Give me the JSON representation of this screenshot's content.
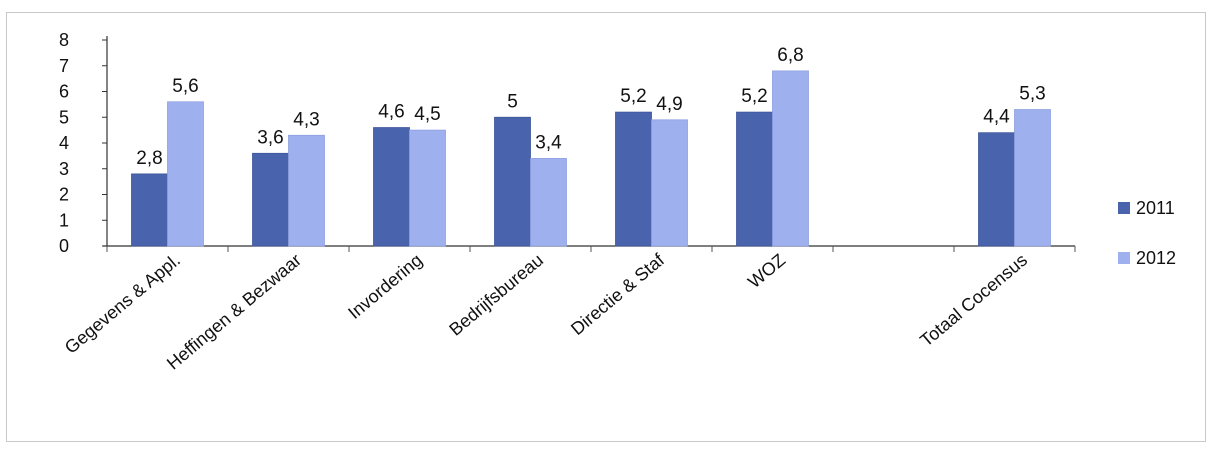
{
  "chart_data": {
    "type": "bar",
    "title": "",
    "xlabel": "",
    "ylabel": "",
    "ylim": [
      0,
      8
    ],
    "yticks": [
      "0",
      "1",
      "2",
      "3",
      "4",
      "5",
      "6",
      "7",
      "8"
    ],
    "grid": false,
    "legend_position": "right",
    "categories": [
      "Gegevens & Appl.",
      "Heffingen & Bezwaar",
      "Invordering",
      "Bedrijfsbureau",
      "Directie & Staf",
      "WOZ",
      "",
      "Totaal Cocensus"
    ],
    "series": [
      {
        "name": "2011",
        "color": "#4a63ad",
        "values": [
          2.8,
          3.6,
          4.6,
          5.0,
          5.2,
          5.2,
          null,
          4.4
        ],
        "labels": [
          "2,8",
          "3,6",
          "4,6",
          "5",
          "5,2",
          "5,2",
          "",
          "4,4"
        ]
      },
      {
        "name": "2012",
        "color": "#9fb0ef",
        "values": [
          5.6,
          4.3,
          4.5,
          3.4,
          4.9,
          6.8,
          null,
          5.3
        ],
        "labels": [
          "5,6",
          "4,3",
          "4,5",
          "3,4",
          "4,9",
          "6,8",
          "",
          "5,3"
        ]
      }
    ]
  }
}
